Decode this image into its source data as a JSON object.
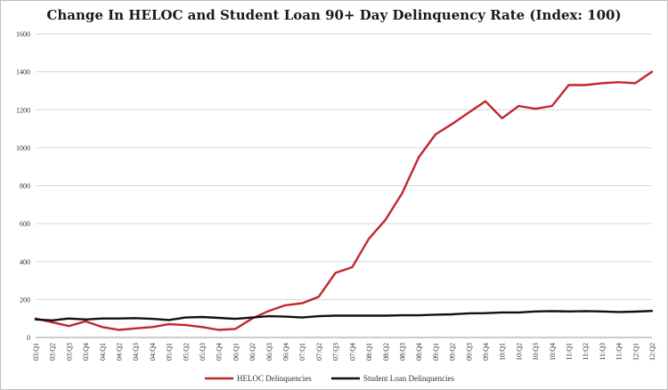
{
  "chart_data": {
    "type": "line",
    "title": "Change In HELOC and Student Loan 90+ Day Delinquency Rate (Index: 100)",
    "xlabel": "",
    "ylabel": "",
    "ylim": [
      0,
      1600
    ],
    "yticks": [
      0,
      200,
      400,
      600,
      800,
      1000,
      1200,
      1400,
      1600
    ],
    "grid": true,
    "legend": "bottom",
    "categories": [
      "03:Q1",
      "03:Q2",
      "03:Q3",
      "03:Q4",
      "04:Q1",
      "04:Q2",
      "04:Q3",
      "04:Q4",
      "05:Q1",
      "05:Q2",
      "05:Q3",
      "05:Q4",
      "06:Q1",
      "06:Q2",
      "06:Q3",
      "06:Q4",
      "07:Q1",
      "07:Q2",
      "07:Q3",
      "07:Q4",
      "08:Q1",
      "08:Q2",
      "08:Q3",
      "08:Q4",
      "09:Q1",
      "09:Q2",
      "09:Q3",
      "09:Q4",
      "10:Q1",
      "10:Q2",
      "10:Q3",
      "10:Q4",
      "11:Q1",
      "11:Q2",
      "11:Q3",
      "11:Q4",
      "12:Q1",
      "12:Q2"
    ],
    "series": [
      {
        "name": "HELOC Delinquencies",
        "color": "#c0272d",
        "values": [
          100,
          80,
          60,
          85,
          55,
          40,
          48,
          55,
          70,
          65,
          55,
          40,
          45,
          100,
          140,
          170,
          180,
          215,
          340,
          370,
          520,
          620,
          760,
          950,
          1070,
          1125,
          1185,
          1245,
          1155,
          1220,
          1205,
          1220,
          1330,
          1330,
          1340,
          1345,
          1340,
          1400
        ]
      },
      {
        "name": "Student Loan Delinquencies",
        "color": "#111111",
        "values": [
          95,
          90,
          100,
          95,
          100,
          100,
          102,
          98,
          92,
          105,
          108,
          103,
          98,
          105,
          112,
          110,
          105,
          112,
          115,
          115,
          115,
          115,
          117,
          117,
          120,
          122,
          127,
          128,
          132,
          132,
          137,
          139,
          137,
          139,
          137,
          134,
          136,
          140
        ]
      }
    ]
  }
}
